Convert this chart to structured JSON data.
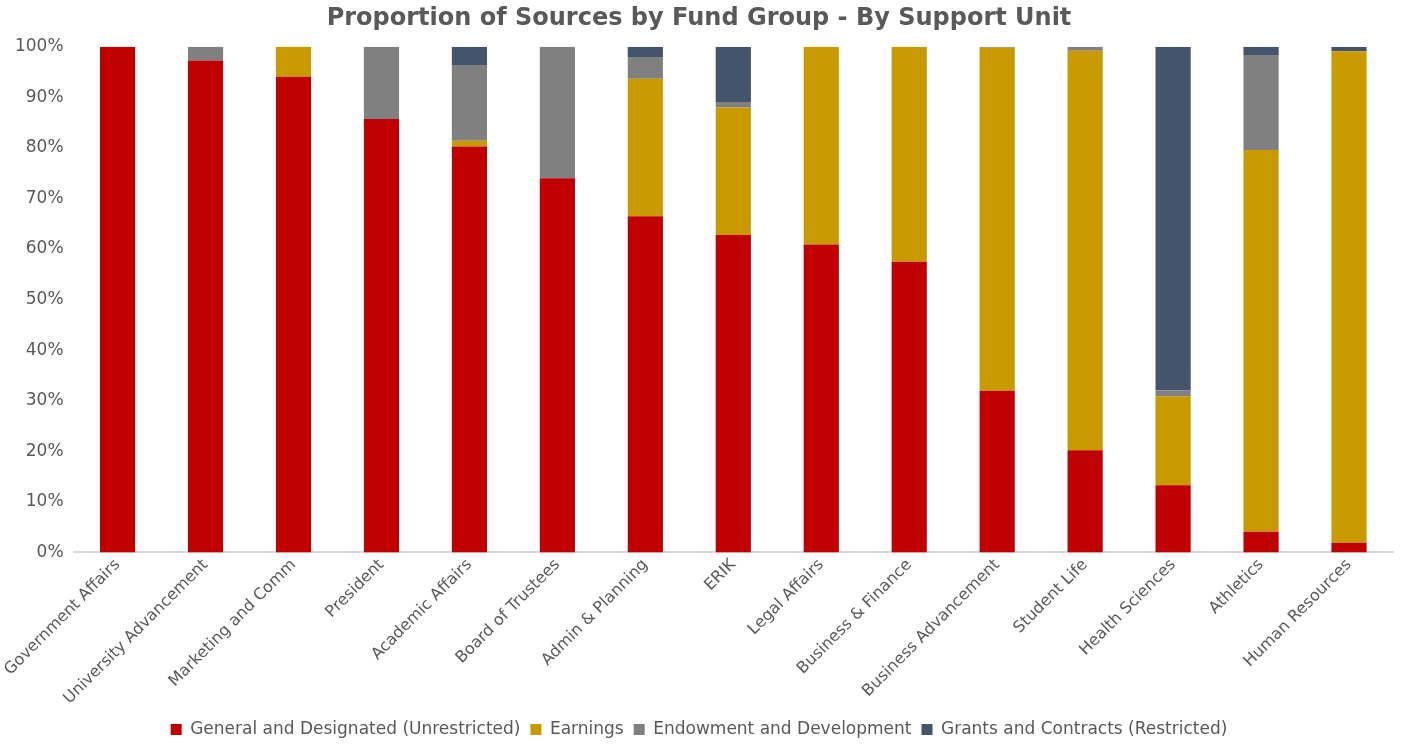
{
  "chart_data": {
    "type": "bar",
    "title": "Proportion of Sources by Fund Group - By Support Unit",
    "categories": [
      "Government Affairs",
      "University Advancement",
      "Marketing and Comm",
      "President",
      "Academic Affairs",
      "Board of Trustees",
      "Admin & Planning",
      "ERIK",
      "Legal Affairs",
      "Business & Finance",
      "Business Advancement",
      "Student Life",
      "Health Sciences",
      "Athletics",
      "Human Resources"
    ],
    "stacked": true,
    "series": [
      {
        "name": "General and Designated (Unrestricted)",
        "color": "#c00000",
        "values": [
          100,
          97.3,
          94.1,
          85.7,
          80.3,
          74,
          66.5,
          62.8,
          60.9,
          57.5,
          32,
          20.2,
          13.3,
          4.1,
          1.9
        ]
      },
      {
        "name": "Earnings",
        "color": "#c99a00",
        "values": [
          0,
          0,
          5.9,
          0,
          1.1,
          0,
          27.2,
          25.2,
          39.1,
          42.5,
          67.8,
          79,
          17.6,
          75.5,
          97.2
        ]
      },
      {
        "name": "Endowment and Development",
        "color": "#808080",
        "values": [
          0,
          2.7,
          0,
          14.3,
          15,
          26,
          4.3,
          1.1,
          0,
          0,
          0.2,
          0.8,
          1.2,
          18.8,
          0
        ]
      },
      {
        "name": "Grants and Contracts (Restricted)",
        "color": "#44546a",
        "values": [
          0,
          0,
          0,
          0,
          3.6,
          0,
          2,
          10.9,
          0,
          0,
          0,
          0,
          67.9,
          1.6,
          0.9
        ]
      }
    ],
    "ylim": [
      0,
      100
    ],
    "yticks": [
      {
        "value": 0,
        "label": "0%"
      },
      {
        "value": 10,
        "label": "10%"
      },
      {
        "value": 20,
        "label": "20%"
      },
      {
        "value": 30,
        "label": "30%"
      },
      {
        "value": 40,
        "label": "40%"
      },
      {
        "value": 50,
        "label": "50%"
      },
      {
        "value": 60,
        "label": "60%"
      },
      {
        "value": 70,
        "label": "70%"
      },
      {
        "value": 80,
        "label": "80%"
      },
      {
        "value": 90,
        "label": "90%"
      },
      {
        "value": 100,
        "label": "100%"
      }
    ],
    "grid": false,
    "legend": "bottom"
  }
}
